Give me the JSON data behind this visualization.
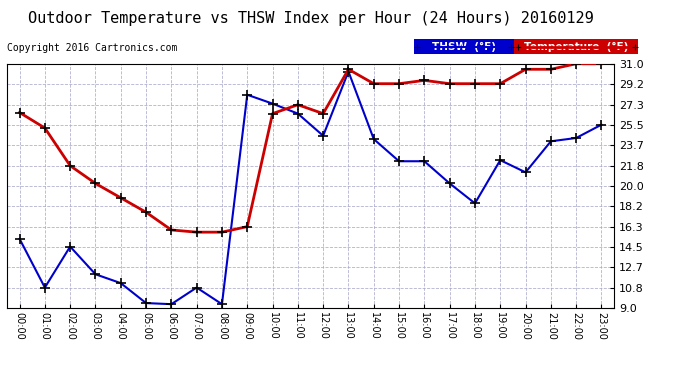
{
  "title": "Outdoor Temperature vs THSW Index per Hour (24 Hours) 20160129",
  "copyright": "Copyright 2016 Cartronics.com",
  "ylabel_right_values": [
    9.0,
    10.8,
    12.7,
    14.5,
    16.3,
    18.2,
    20.0,
    21.8,
    23.7,
    25.5,
    27.3,
    29.2,
    31.0
  ],
  "ylim": [
    9.0,
    31.0
  ],
  "hours": [
    "00:00",
    "01:00",
    "02:00",
    "03:00",
    "04:00",
    "05:00",
    "06:00",
    "07:00",
    "08:00",
    "09:00",
    "10:00",
    "11:00",
    "12:00",
    "13:00",
    "14:00",
    "15:00",
    "16:00",
    "17:00",
    "18:00",
    "19:00",
    "20:00",
    "21:00",
    "22:00",
    "23:00"
  ],
  "thsw_data": [
    15.2,
    10.8,
    14.5,
    12.0,
    11.2,
    9.4,
    9.3,
    10.8,
    9.3,
    28.2,
    27.4,
    26.5,
    24.5,
    30.3,
    24.2,
    22.2,
    22.2,
    20.2,
    18.4,
    22.3,
    21.2,
    24.0,
    24.3,
    25.5
  ],
  "temp_data": [
    26.6,
    25.2,
    21.8,
    20.2,
    18.9,
    17.6,
    16.0,
    15.8,
    15.8,
    16.3,
    26.5,
    27.3,
    26.5,
    30.5,
    29.2,
    29.2,
    29.5,
    29.2,
    29.2,
    29.2,
    30.5,
    30.5,
    31.0,
    31.0
  ],
  "thsw_color": "#0000cc",
  "temp_color": "#cc0000",
  "background_color": "#ffffff",
  "plot_bg_color": "#ffffff",
  "grid_color": "#aaaacc",
  "title_fontsize": 11,
  "tick_fontsize": 8,
  "legend_thsw_bg": "#0000cc",
  "legend_temp_bg": "#cc0000"
}
